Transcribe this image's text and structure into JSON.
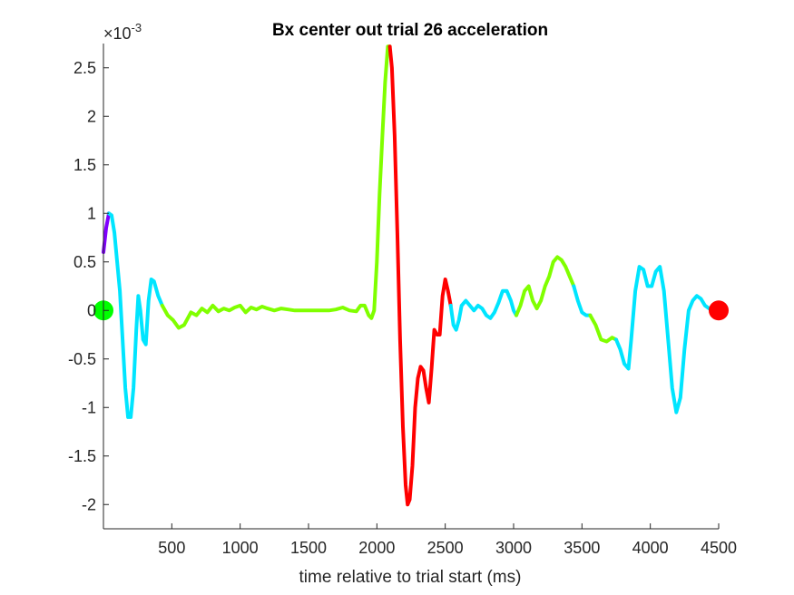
{
  "chart_data": {
    "type": "scatter",
    "title": "Bx  center out trial 26 acceleration",
    "xlabel": "time relative to trial start (ms)",
    "ylabel": "",
    "y_exponent_label": "×10",
    "y_exponent_power": "-3",
    "xlim": [
      0,
      4500
    ],
    "ylim": [
      -2.25,
      2.75
    ],
    "x_ticks": [
      500,
      1000,
      1500,
      2000,
      2500,
      3000,
      3500,
      4000,
      4500
    ],
    "x_tick_labels": [
      "500",
      "1000",
      "1500",
      "2000",
      "2500",
      "3000",
      "3500",
      "4000",
      "4500"
    ],
    "y_ticks": [
      -2,
      -1.5,
      -1,
      -0.5,
      0,
      0.5,
      1,
      1.5,
      2,
      2.5
    ],
    "y_tick_labels": [
      "-2",
      "-1.5",
      "-1",
      "-0.5",
      "0",
      "0.5",
      "1",
      "1.5",
      "2",
      "2.5"
    ],
    "grid": false,
    "colors": {
      "purple": "#8000ff",
      "cyan": "#00e5ff",
      "green": "#80ff00",
      "red": "#ff0000",
      "start_marker": "#00ff00",
      "end_marker": "#ff0000"
    },
    "segments": [
      {
        "color": "purple",
        "points": [
          [
            0,
            0.6
          ],
          [
            20,
            0.85
          ],
          [
            40,
            1.0
          ]
        ]
      },
      {
        "color": "cyan",
        "points": [
          [
            40,
            1.0
          ],
          [
            60,
            0.98
          ],
          [
            80,
            0.8
          ],
          [
            100,
            0.5
          ],
          [
            120,
            0.2
          ],
          [
            140,
            -0.3
          ],
          [
            160,
            -0.8
          ],
          [
            180,
            -1.1
          ],
          [
            200,
            -1.1
          ],
          [
            220,
            -0.8
          ],
          [
            240,
            -0.2
          ],
          [
            255,
            0.15
          ],
          [
            270,
            0.0
          ],
          [
            290,
            -0.3
          ],
          [
            310,
            -0.35
          ],
          [
            330,
            0.1
          ],
          [
            350,
            0.32
          ],
          [
            370,
            0.3
          ],
          [
            400,
            0.15
          ],
          [
            430,
            0.05
          ]
        ]
      },
      {
        "color": "green",
        "points": [
          [
            430,
            0.05
          ],
          [
            470,
            -0.05
          ],
          [
            510,
            -0.1
          ],
          [
            550,
            -0.18
          ],
          [
            590,
            -0.15
          ],
          [
            640,
            -0.02
          ],
          [
            680,
            -0.05
          ],
          [
            720,
            0.02
          ],
          [
            760,
            -0.02
          ],
          [
            800,
            0.05
          ],
          [
            840,
            -0.01
          ],
          [
            880,
            0.02
          ],
          [
            920,
            0.0
          ],
          [
            960,
            0.03
          ],
          [
            1000,
            0.05
          ],
          [
            1040,
            -0.02
          ],
          [
            1080,
            0.03
          ],
          [
            1120,
            0.01
          ],
          [
            1160,
            0.04
          ],
          [
            1200,
            0.02
          ],
          [
            1250,
            0.0
          ],
          [
            1300,
            0.02
          ],
          [
            1350,
            0.01
          ],
          [
            1400,
            0.0
          ],
          [
            1450,
            0.0
          ],
          [
            1500,
            0.0
          ],
          [
            1550,
            0.0
          ],
          [
            1600,
            0.0
          ],
          [
            1650,
            0.0
          ],
          [
            1700,
            0.01
          ],
          [
            1750,
            0.03
          ],
          [
            1800,
            0.0
          ],
          [
            1850,
            -0.01
          ],
          [
            1880,
            0.05
          ],
          [
            1910,
            0.05
          ],
          [
            1940,
            -0.05
          ],
          [
            1960,
            -0.08
          ],
          [
            1980,
            0.0
          ],
          [
            2000,
            0.5
          ],
          [
            2020,
            1.2
          ],
          [
            2040,
            1.8
          ],
          [
            2060,
            2.35
          ],
          [
            2080,
            2.72
          ],
          [
            2095,
            2.72
          ]
        ]
      },
      {
        "color": "red",
        "points": [
          [
            2095,
            2.72
          ],
          [
            2110,
            2.5
          ],
          [
            2130,
            1.8
          ],
          [
            2150,
            0.8
          ],
          [
            2170,
            -0.3
          ],
          [
            2190,
            -1.2
          ],
          [
            2210,
            -1.8
          ],
          [
            2225,
            -2.0
          ],
          [
            2240,
            -1.95
          ],
          [
            2260,
            -1.6
          ],
          [
            2280,
            -1.0
          ],
          [
            2300,
            -0.7
          ],
          [
            2320,
            -0.58
          ],
          [
            2340,
            -0.62
          ],
          [
            2360,
            -0.8
          ],
          [
            2380,
            -0.95
          ],
          [
            2400,
            -0.6
          ],
          [
            2420,
            -0.2
          ],
          [
            2440,
            -0.25
          ],
          [
            2460,
            -0.25
          ],
          [
            2480,
            0.15
          ],
          [
            2500,
            0.32
          ],
          [
            2520,
            0.2
          ],
          [
            2540,
            0.05
          ]
        ]
      },
      {
        "color": "cyan",
        "points": [
          [
            2540,
            0.05
          ],
          [
            2560,
            -0.15
          ],
          [
            2580,
            -0.2
          ],
          [
            2600,
            -0.1
          ],
          [
            2620,
            0.05
          ],
          [
            2650,
            0.1
          ],
          [
            2680,
            0.05
          ],
          [
            2710,
            0.0
          ],
          [
            2740,
            0.05
          ],
          [
            2770,
            0.02
          ],
          [
            2800,
            -0.05
          ],
          [
            2830,
            -0.08
          ],
          [
            2860,
            -0.02
          ],
          [
            2890,
            0.08
          ],
          [
            2920,
            0.2
          ],
          [
            2950,
            0.2
          ],
          [
            2980,
            0.1
          ],
          [
            3000,
            0.0
          ],
          [
            3020,
            -0.05
          ]
        ]
      },
      {
        "color": "green",
        "points": [
          [
            3020,
            -0.05
          ],
          [
            3050,
            0.05
          ],
          [
            3080,
            0.2
          ],
          [
            3110,
            0.25
          ],
          [
            3140,
            0.1
          ],
          [
            3170,
            0.02
          ],
          [
            3200,
            0.1
          ],
          [
            3230,
            0.25
          ],
          [
            3260,
            0.35
          ],
          [
            3290,
            0.5
          ],
          [
            3320,
            0.55
          ],
          [
            3350,
            0.52
          ],
          [
            3380,
            0.45
          ],
          [
            3410,
            0.35
          ],
          [
            3440,
            0.25
          ]
        ]
      },
      {
        "color": "cyan",
        "points": [
          [
            3440,
            0.25
          ],
          [
            3470,
            0.1
          ],
          [
            3500,
            -0.02
          ],
          [
            3530,
            -0.05
          ],
          [
            3560,
            -0.05
          ]
        ]
      },
      {
        "color": "green",
        "points": [
          [
            3560,
            -0.05
          ],
          [
            3600,
            -0.15
          ],
          [
            3640,
            -0.3
          ],
          [
            3680,
            -0.32
          ],
          [
            3720,
            -0.28
          ],
          [
            3750,
            -0.3
          ]
        ]
      },
      {
        "color": "cyan",
        "points": [
          [
            3750,
            -0.3
          ],
          [
            3780,
            -0.4
          ],
          [
            3810,
            -0.55
          ],
          [
            3840,
            -0.6
          ],
          [
            3860,
            -0.3
          ],
          [
            3890,
            0.2
          ],
          [
            3920,
            0.45
          ],
          [
            3950,
            0.42
          ],
          [
            3980,
            0.25
          ],
          [
            4010,
            0.25
          ],
          [
            4040,
            0.4
          ],
          [
            4070,
            0.45
          ],
          [
            4100,
            0.2
          ],
          [
            4130,
            -0.3
          ],
          [
            4160,
            -0.8
          ],
          [
            4190,
            -1.05
          ],
          [
            4220,
            -0.9
          ],
          [
            4250,
            -0.4
          ],
          [
            4280,
            0.0
          ],
          [
            4310,
            0.1
          ],
          [
            4340,
            0.15
          ],
          [
            4370,
            0.12
          ],
          [
            4400,
            0.05
          ],
          [
            4430,
            0.02
          ],
          [
            4460,
            0.0
          ],
          [
            4490,
            0.0
          ]
        ]
      }
    ],
    "markers": [
      {
        "name": "start-marker",
        "x": 0,
        "y": 0,
        "color": "start_marker"
      },
      {
        "name": "end-marker",
        "x": 4500,
        "y": 0,
        "color": "end_marker"
      }
    ]
  }
}
